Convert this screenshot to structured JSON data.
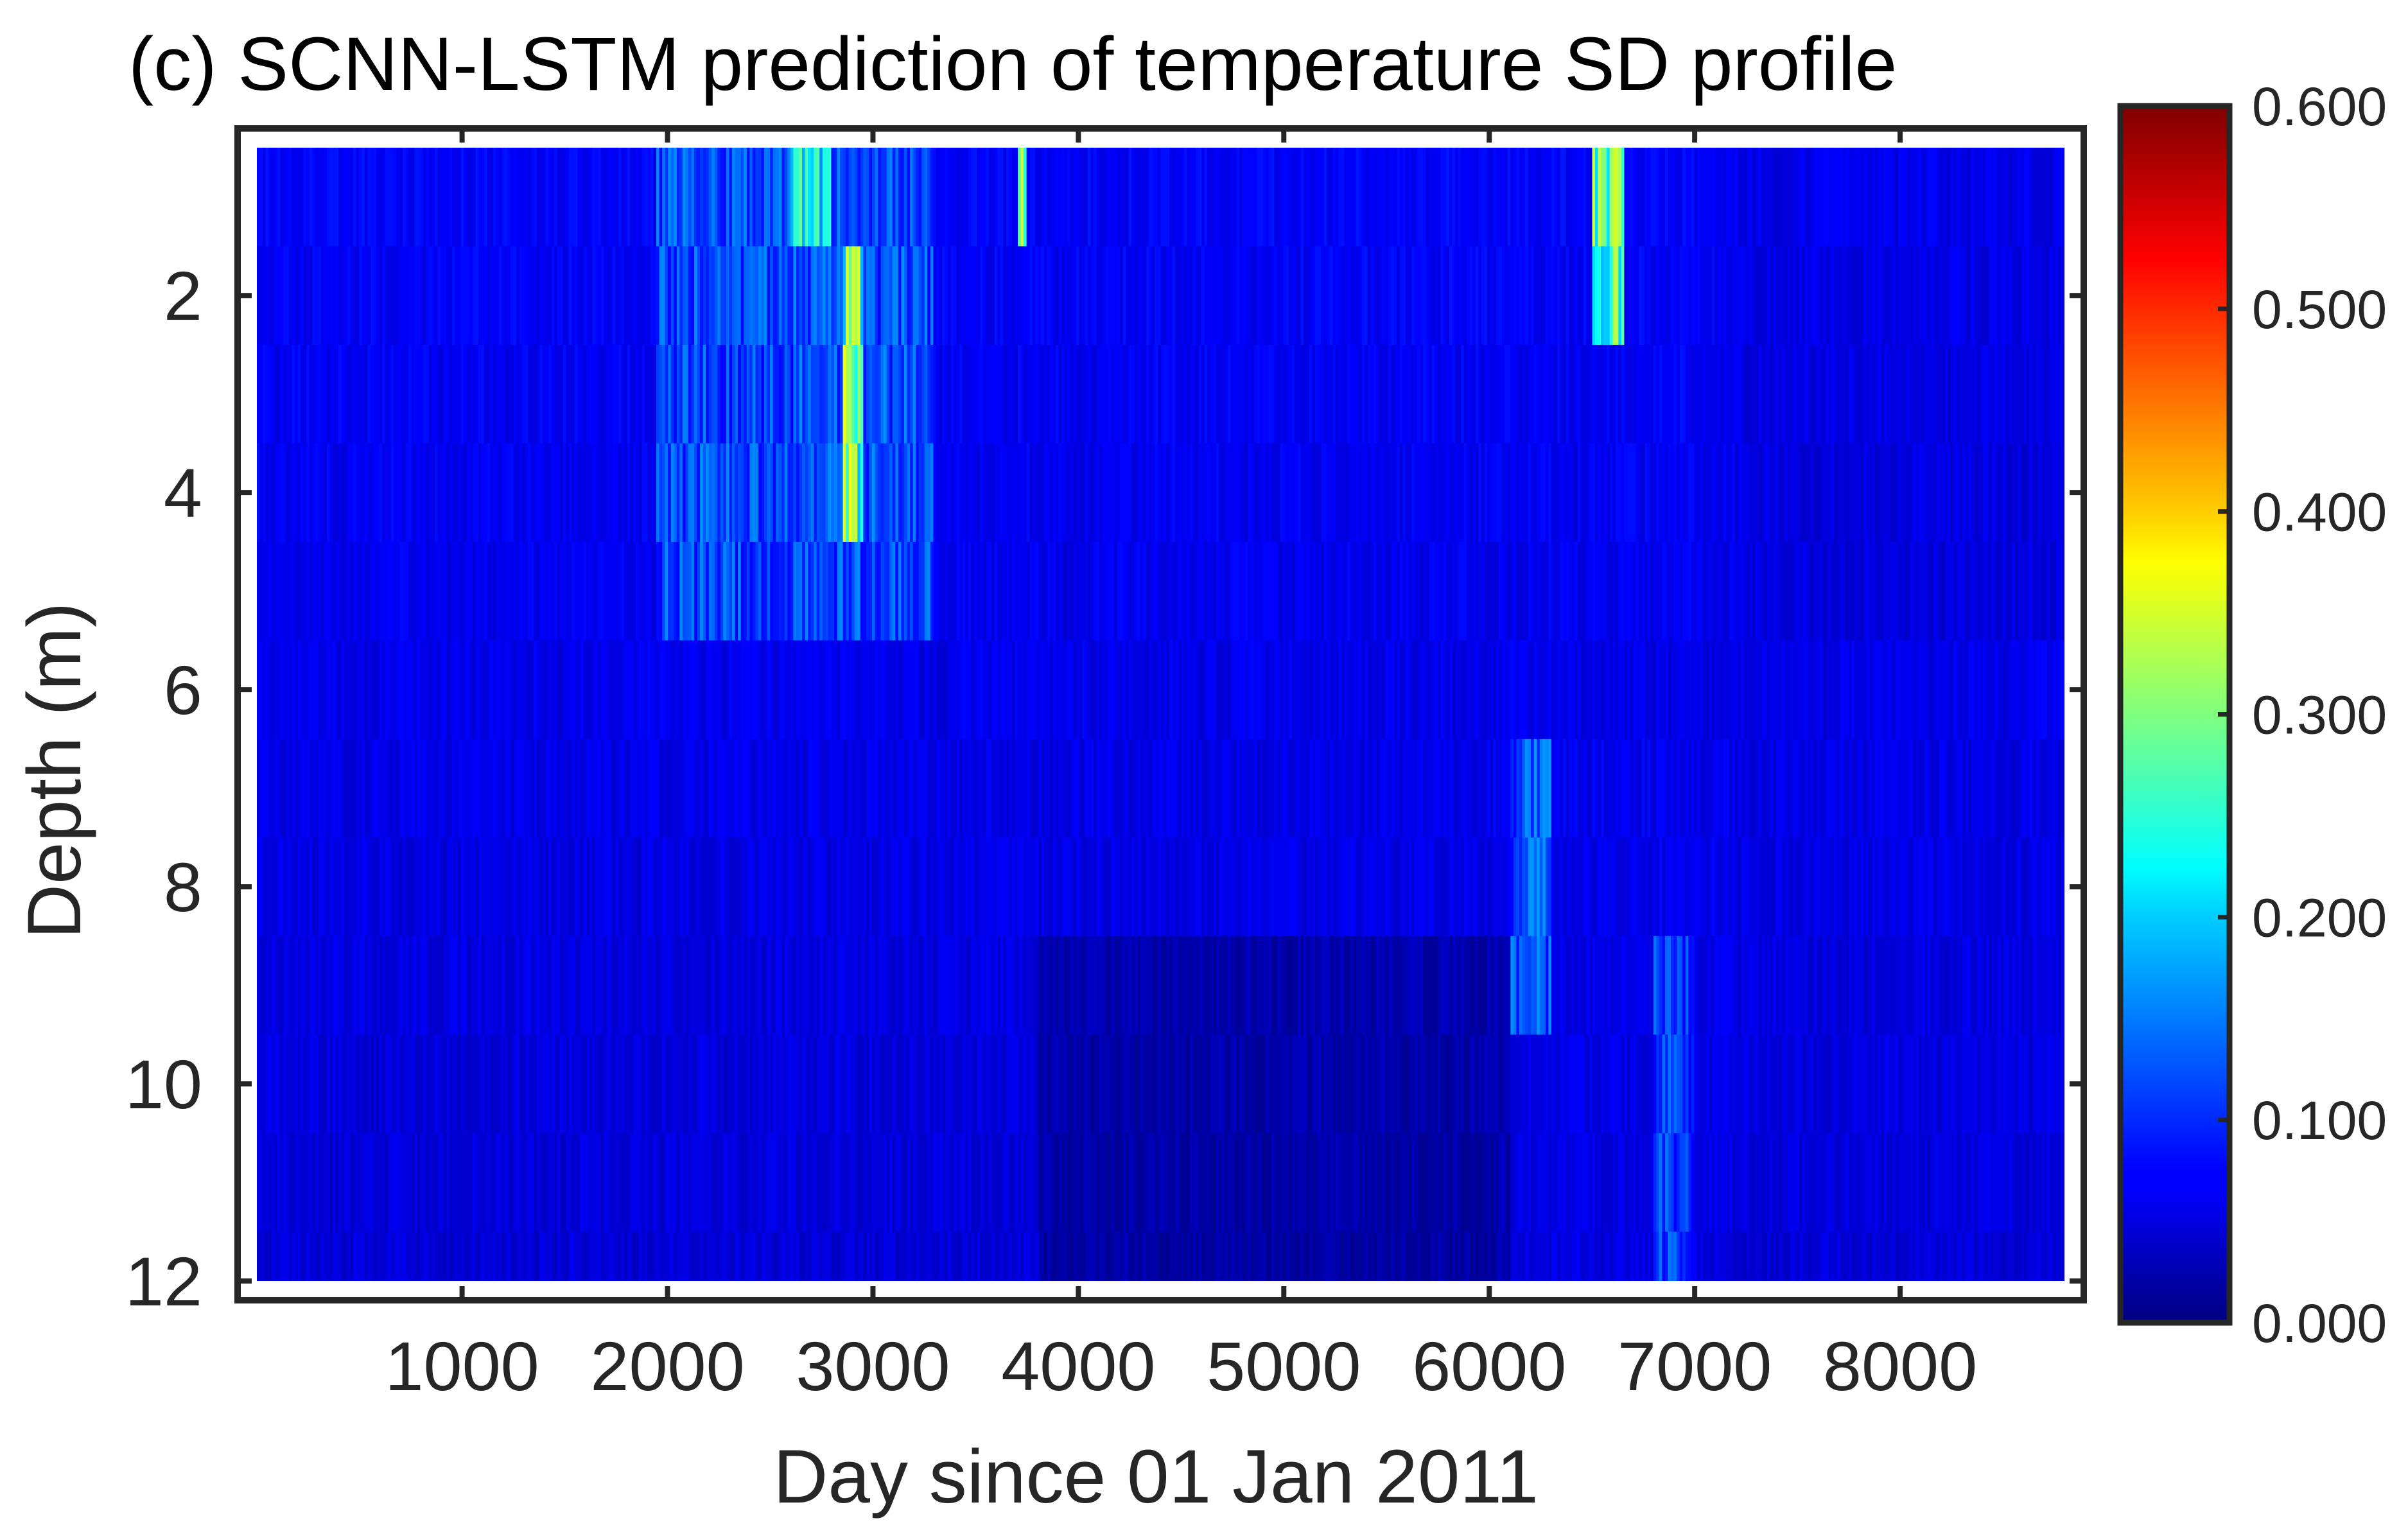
{
  "chart_data": {
    "type": "heatmap",
    "title": "(c) SCNN-LSTM prediction of temperature SD profile",
    "xlabel": "Day since 01 Jan 2011",
    "ylabel": "Depth (m)",
    "xlim": [
      1,
      8800
    ],
    "ylim": [
      0.5,
      12
    ],
    "y_reversed": true,
    "xticks": [
      1000,
      2000,
      3000,
      4000,
      5000,
      6000,
      7000,
      8000
    ],
    "xtick_labels": [
      "1000",
      "2000",
      "3000",
      "4000",
      "5000",
      "6000",
      "7000",
      "8000"
    ],
    "yticks": [
      2,
      4,
      6,
      8,
      10,
      12
    ],
    "ytick_labels": [
      "2",
      "4",
      "6",
      "8",
      "10",
      "12"
    ],
    "colorbar": {
      "colormap": "jet",
      "range": [
        0,
        0.6
      ],
      "ticks": [
        0,
        0.1,
        0.2,
        0.3,
        0.4,
        0.5,
        0.6
      ],
      "tick_labels": [
        "0.000",
        "0.100",
        "0.200",
        "0.300",
        "0.400",
        "0.500",
        "0.600"
      ],
      "placement": "right"
    },
    "depth_levels": [
      0.5,
      1.5,
      2.5,
      3.5,
      4.5,
      5.5,
      6.5,
      7.5,
      8.5,
      9.5,
      10.5,
      11.5,
      12
    ],
    "grid": false,
    "features": [
      {
        "day_range": [
          1950,
          3300
        ],
        "depth_range": [
          0.5,
          5.5
        ],
        "sd": 0.16
      },
      {
        "day_range": [
          2600,
          2800
        ],
        "depth_range": [
          0.5,
          1.5
        ],
        "sd": 0.3
      },
      {
        "day_range": [
          2850,
          2950
        ],
        "depth_range": [
          2.0,
          4.5
        ],
        "sd": 0.4
      },
      {
        "day_range": [
          3700,
          3750
        ],
        "depth_range": [
          0.5,
          1.0
        ],
        "sd": 0.45
      },
      {
        "day_range": [
          6500,
          6650
        ],
        "depth_range": [
          0.5,
          2.0
        ],
        "sd": 0.35
      },
      {
        "day_range": [
          6100,
          6300
        ],
        "depth_range": [
          6.5,
          9.0
        ],
        "sd": 0.17
      },
      {
        "day_range": [
          6800,
          7000
        ],
        "depth_range": [
          8.5,
          12
        ],
        "sd": 0.15
      }
    ]
  }
}
